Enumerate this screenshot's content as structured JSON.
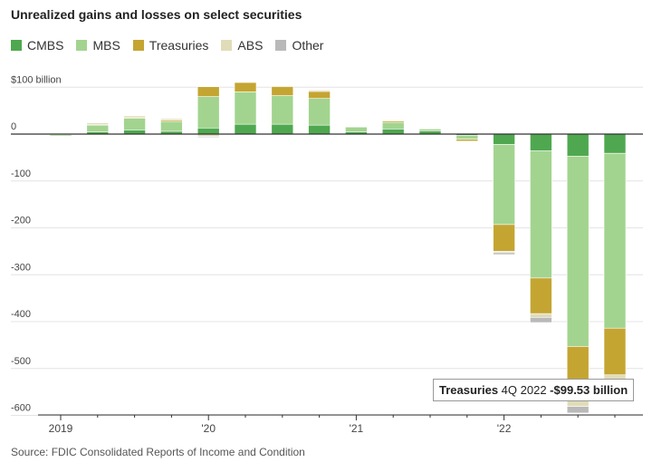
{
  "header": {
    "title": "Unrealized gains and losses on select securities"
  },
  "source": "Source: FDIC Consolidated Reports of Income and Condition",
  "colors": {
    "CMBS": "#4fa84f",
    "MBS": "#a2d48f",
    "Treasuries": "#c4a532",
    "ABS": "#e0dcb8",
    "Other": "#b9b9b9"
  },
  "tooltip": {
    "series": "Treasuries",
    "period": "4Q 2022",
    "value": "-$99.53 billion"
  },
  "chart_data": {
    "type": "bar",
    "stacked": true,
    "title": "Unrealized gains and losses on select securities",
    "ylim": [
      -600,
      110
    ],
    "y_ticks": [
      100,
      0,
      -100,
      -200,
      -300,
      -400,
      -500,
      -600
    ],
    "y_tick_labels": [
      "$100 billion",
      "0",
      "-100",
      "-200",
      "-300",
      "-400",
      "-500",
      "-600"
    ],
    "x_tick_labels": [
      "2019",
      "'20",
      "'21",
      "'22"
    ],
    "grid": true,
    "legend_position": "top-left",
    "categories": [
      "1Q 2019",
      "2Q 2019",
      "3Q 2019",
      "4Q 2019",
      "1Q 2020",
      "2Q 2020",
      "3Q 2020",
      "4Q 2020",
      "1Q 2021",
      "2Q 2021",
      "3Q 2021",
      "4Q 2021",
      "1Q 2022",
      "2Q 2022",
      "3Q 2022",
      "4Q 2022"
    ],
    "series": [
      {
        "name": "CMBS",
        "values": [
          -1,
          5,
          9,
          6,
          13,
          21,
          21,
          19,
          5,
          11,
          7,
          -3,
          -22,
          -36,
          -47,
          -41
        ]
      },
      {
        "name": "MBS",
        "values": [
          -3,
          14,
          25,
          21,
          67,
          69,
          61,
          57,
          10,
          14,
          4,
          -8,
          -171,
          -271,
          -406,
          -373
        ]
      },
      {
        "name": "Treasuries",
        "values": [
          -1,
          1,
          2,
          3,
          21,
          20,
          19,
          15,
          0,
          3,
          -1,
          -4,
          -57,
          -76,
          -116,
          -99.53
        ]
      },
      {
        "name": "ABS",
        "values": [
          -1,
          4,
          3,
          3,
          -5,
          0,
          2,
          3,
          0,
          2,
          1,
          -1,
          -3,
          -8,
          -12,
          -11
        ]
      },
      {
        "name": "Other",
        "values": [
          0,
          1,
          1,
          1,
          -2,
          0,
          1,
          1,
          0,
          1,
          0,
          0,
          -4,
          -11,
          -14,
          -10
        ]
      }
    ]
  }
}
